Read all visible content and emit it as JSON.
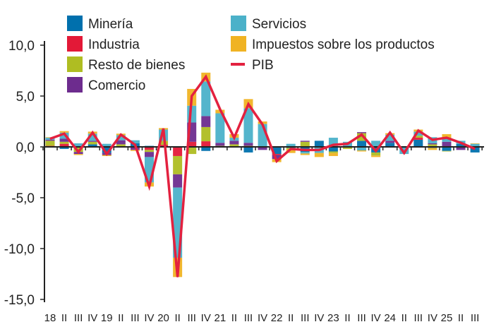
{
  "chart_data": {
    "type": "bar",
    "stacked": true,
    "title": "",
    "xlabel": "",
    "ylabel": "",
    "ylim": [
      -15,
      10
    ],
    "yticks": [
      "10,0",
      "5,0",
      "0,0",
      "-5,0",
      "-10,0",
      "-15,0"
    ],
    "ytick_values": [
      10,
      5,
      0,
      -5,
      -10,
      -15
    ],
    "grid": false,
    "legend_placement": "top",
    "categories": [
      "18",
      "II",
      "III",
      "IV",
      "19",
      "II",
      "III",
      "IV",
      "20",
      "II",
      "III",
      "IV",
      "21",
      "II",
      "III",
      "IV",
      "22",
      "II",
      "III",
      "IV",
      "23",
      "II",
      "III",
      "IV",
      "24",
      "II",
      "III",
      "IV",
      "25",
      "II",
      "III"
    ],
    "series": [
      {
        "name": "Minería",
        "color": "#0070ad",
        "values": [
          -0.05,
          -0.2,
          0,
          0.25,
          -0.6,
          0,
          0.35,
          0.1,
          0,
          0,
          0,
          -0.4,
          0,
          0,
          -0.55,
          0,
          -0.7,
          -0.1,
          -0.5,
          0.6,
          -0.45,
          0,
          0.6,
          -0.55,
          0.4,
          -0.1,
          0.7,
          -0.1,
          -0.4,
          0.3,
          -0.55
        ]
      },
      {
        "name": "Industria",
        "color": "#e31937",
        "values": [
          0.1,
          0.3,
          0,
          0,
          0,
          0,
          0,
          -0.3,
          0.2,
          -0.9,
          0.5,
          0.55,
          0,
          0,
          0,
          0,
          -0.1,
          0,
          0,
          0,
          0,
          0,
          0,
          0,
          0,
          0,
          0.2,
          0,
          0,
          0,
          0
        ]
      },
      {
        "name": "Resto de bienes",
        "color": "#afbd22",
        "values": [
          0.5,
          0.2,
          -0.5,
          0.25,
          0,
          0.25,
          0,
          -0.2,
          0.4,
          -1.8,
          -0.7,
          1.4,
          0.1,
          0.25,
          0.1,
          0,
          0,
          -0.1,
          0.5,
          0,
          -0.15,
          -0.2,
          0.75,
          -0.3,
          0,
          0,
          0.2,
          0.25,
          -0.05,
          0,
          0
        ]
      },
      {
        "name": "Comercio",
        "color": "#6d2c8e",
        "values": [
          0.1,
          0.3,
          -0.2,
          0.1,
          -0.2,
          0.4,
          -0.3,
          -0.5,
          0,
          -1.3,
          1.9,
          1.08,
          0.3,
          0.35,
          0.3,
          -0.3,
          -0.4,
          0,
          0.1,
          0,
          0,
          0,
          0.1,
          0,
          0.2,
          0.05,
          0,
          0.1,
          0.5,
          -0.3,
          0
        ]
      },
      {
        "name": "Servicios",
        "color": "#4bb1c9",
        "values": [
          0.2,
          0.6,
          0.35,
          0.7,
          0.3,
          0.5,
          0.3,
          -2.5,
          1.1,
          -6.9,
          1.65,
          3.4,
          2.9,
          0.3,
          3.4,
          2.25,
          0,
          0.3,
          -0.15,
          -0.6,
          0.9,
          0.5,
          -0.35,
          0.6,
          0.6,
          -0.6,
          0.4,
          0.6,
          0.4,
          0.3,
          0.3
        ]
      },
      {
        "name": "Impuestos sobre los productos",
        "color": "#f0b323",
        "values": [
          0.05,
          0.15,
          -0.1,
          0.2,
          -0.1,
          0.15,
          -0.1,
          -0.4,
          0.15,
          -1.9,
          1.65,
          0.87,
          0.35,
          0.35,
          0.9,
          0.25,
          -0.3,
          -0.4,
          -0.15,
          -0.4,
          -0.3,
          0,
          -0.1,
          -0.15,
          0.15,
          0,
          0.2,
          -0.2,
          0.35,
          0,
          0.05
        ]
      }
    ],
    "line_series": {
      "name": "PIB",
      "color": "#e3213f",
      "values": [
        0.8,
        1.3,
        -0.5,
        1.4,
        -0.7,
        1.2,
        0.2,
        -3.9,
        1.8,
        -12.8,
        5.0,
        6.9,
        3.7,
        0.9,
        4.2,
        2.2,
        -1.4,
        -0.2,
        -0.3,
        -0.3,
        0.2,
        0.3,
        1.2,
        -0.4,
        1.4,
        -0.6,
        1.6,
        0.7,
        0.9,
        0.4,
        -0.2
      ]
    }
  }
}
